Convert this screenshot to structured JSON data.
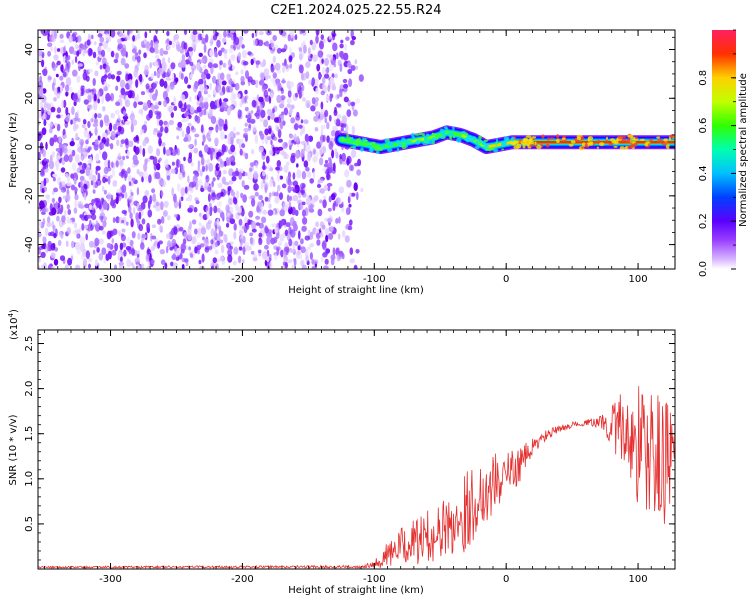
{
  "title": "C2E1.2024.025.22.55.R24",
  "chart_data": [
    {
      "type": "heatmap",
      "title": "C2E1.2024.025.22.55.R24",
      "xlabel": "Height of straight line (km)",
      "ylabel": "Frequency (Hz)",
      "xlim": [
        -355,
        128
      ],
      "ylim": [
        -50,
        48
      ],
      "xticks": [
        -300,
        -200,
        -100,
        0,
        100
      ],
      "yticks": [
        -40,
        -20,
        0,
        20,
        40
      ],
      "grid": false,
      "noise_region_x": [
        -355,
        -115
      ],
      "ridge": {
        "x": [
          -125,
          -115,
          -105,
          -95,
          -85,
          -75,
          -65,
          -55,
          -45,
          -35,
          -25,
          -15,
          -5,
          5,
          25,
          50,
          75,
          100,
          128
        ],
        "y": [
          3,
          2,
          1,
          0,
          1,
          2,
          3,
          4,
          6,
          5,
          3,
          0,
          1,
          2,
          2,
          2,
          2,
          2,
          2
        ],
        "amplitude": [
          0.3,
          0.35,
          0.4,
          0.45,
          0.5,
          0.55,
          0.6,
          0.55,
          0.5,
          0.55,
          0.6,
          0.7,
          0.75,
          0.8,
          0.85,
          0.9,
          0.92,
          0.9,
          0.88
        ]
      },
      "colorbar": {
        "label": "Normalized spectral amplitude",
        "range": [
          0,
          1
        ],
        "ticks": [
          0.0,
          0.2,
          0.4,
          0.6,
          0.8
        ]
      }
    },
    {
      "type": "line",
      "xlabel": "Height of straight line (km)",
      "ylabel": "SNR (10 * v/v)",
      "y_multiplier": "(x10",
      "y_multiplier_exp": "4",
      "y_multiplier_close": ")",
      "xlim": [
        -355,
        128
      ],
      "ylim": [
        0,
        26500
      ],
      "xticks": [
        -300,
        -200,
        -100,
        0,
        100
      ],
      "ytick_labels": [
        "0.5",
        "1.0",
        "1.5",
        "2.0",
        "2.5"
      ],
      "ytick_values": [
        5000,
        10000,
        15000,
        20000,
        25000
      ],
      "grid": false,
      "color": "#e53030",
      "envelope": {
        "x": [
          -355,
          -110,
          -100,
          -90,
          -80,
          -70,
          -60,
          -50,
          -40,
          -30,
          -20,
          -10,
          0,
          10,
          20,
          30,
          40,
          50,
          60,
          70,
          80,
          90,
          100,
          110,
          120,
          128
        ],
        "mean": [
          200,
          250,
          600,
          1500,
          2500,
          3000,
          3500,
          4200,
          5000,
          6500,
          8000,
          9500,
          10500,
          11500,
          13500,
          14800,
          15500,
          16000,
          16200,
          16300,
          16000,
          15000,
          14000,
          12500,
          12000,
          13000
        ],
        "amplitude": [
          100,
          150,
          400,
          1500,
          2000,
          2500,
          3000,
          3000,
          4000,
          4500,
          4000,
          3500,
          2500,
          2000,
          1000,
          600,
          400,
          300,
          300,
          600,
          2500,
          5000,
          7000,
          8000,
          7000,
          5000
        ]
      }
    }
  ]
}
